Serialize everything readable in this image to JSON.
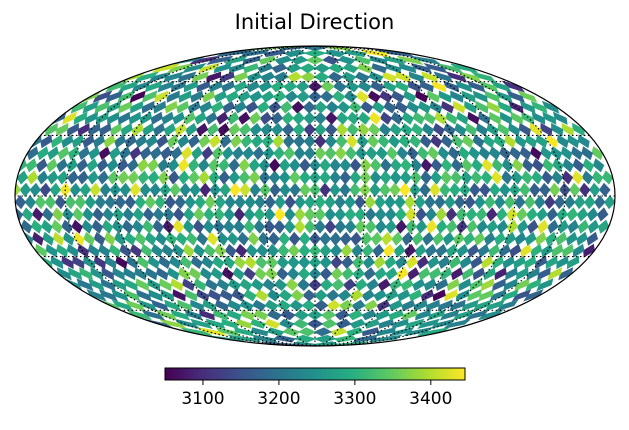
{
  "chart_data": {
    "type": "heatmap",
    "projection": "mollweide",
    "title": "Initial Direction",
    "colormap": "viridis",
    "vmin": 3050,
    "vmax": 3445,
    "colorbar_ticks": [
      3100,
      3200,
      3300,
      3400
    ],
    "colorbar_tick_labels": [
      "3100",
      "3200",
      "3300",
      "3400"
    ],
    "graticule": "on",
    "graticule_style": "dotted",
    "meridians_deg": [
      -150,
      -120,
      -90,
      -60,
      -30,
      0,
      30,
      60,
      90,
      120,
      150
    ],
    "parallels_deg": [
      -60,
      -30,
      0,
      30,
      60
    ],
    "distribution": "random pixel values mostly 3150-3350, sparse extremes near 3050 and 3440",
    "value_histogram": [
      {
        "bin": [
          3050,
          3150
        ],
        "fraction": 0.08
      },
      {
        "bin": [
          3150,
          3220
        ],
        "fraction": 0.22
      },
      {
        "bin": [
          3220,
          3300
        ],
        "fraction": 0.42
      },
      {
        "bin": [
          3300,
          3370
        ],
        "fraction": 0.22
      },
      {
        "bin": [
          3370,
          3445
        ],
        "fraction": 0.06
      }
    ]
  }
}
